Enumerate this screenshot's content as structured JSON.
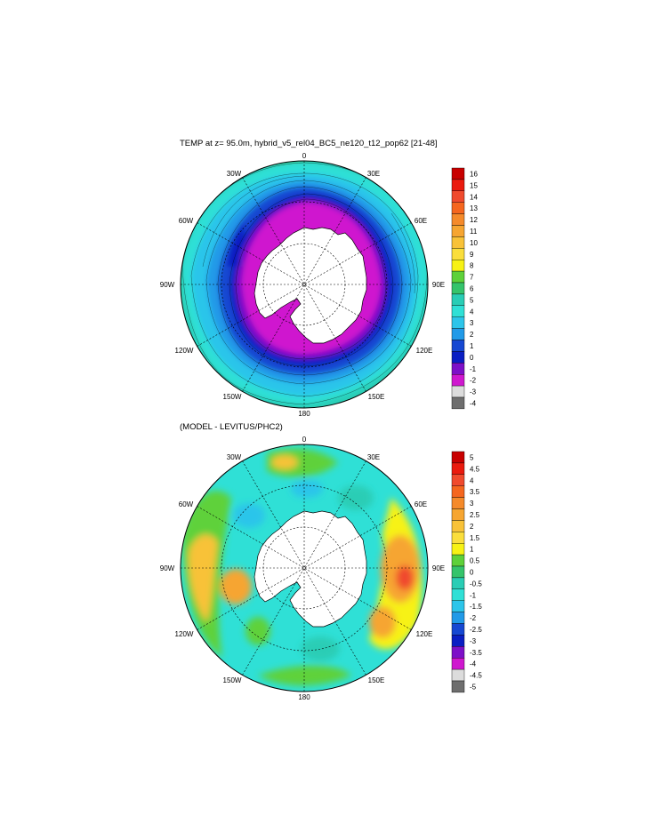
{
  "maps": [
    {
      "title": "TEMP at z=  95.0m, hybrid_v5_rel04_BC5_ne120_t12_pop62 [21-48]",
      "projection": "polar-stereographic-south",
      "longitude_labels": {
        "top": "0",
        "upper_right": "30E",
        "right_upper": "60E",
        "right": "90E",
        "right_lower": "120E",
        "lower_right": "150E",
        "bottom": "180",
        "lower_left": "150W",
        "left_lower": "120W",
        "left": "90W",
        "left_upper": "60W",
        "upper_left": "30W"
      },
      "colorbar": {
        "labels": [
          "16",
          "15",
          "14",
          "13",
          "12",
          "11",
          "10",
          "9",
          "8",
          "7",
          "6",
          "5",
          "4",
          "3",
          "2",
          "1",
          "0",
          "-1",
          "-2",
          "-3",
          "-4"
        ],
        "colors": [
          "#c80000",
          "#ea1a0e",
          "#f04a2d",
          "#f5661e",
          "#f58a2a",
          "#f6a531",
          "#f8c238",
          "#fade3c",
          "#f7f214",
          "#5ed13a",
          "#35c46b",
          "#29cdb5",
          "#2fe0d6",
          "#2cc5ea",
          "#219ae8",
          "#1648d2",
          "#0a1ec3",
          "#7d10c8",
          "#cf18cf",
          "#dcdcdc",
          "#6e6e6e"
        ]
      }
    },
    {
      "title": "(MODEL - LEVITUS/PHC2)",
      "projection": "polar-stereographic-south",
      "longitude_labels": {
        "top": "0",
        "upper_right": "30E",
        "right_upper": "60E",
        "right": "90E",
        "right_lower": "120E",
        "lower_right": "150E",
        "bottom": "180",
        "lower_left": "150W",
        "left_lower": "120W",
        "left": "90W",
        "left_upper": "60W",
        "upper_left": "30W"
      },
      "colorbar": {
        "labels": [
          "5",
          "4.5",
          "4",
          "3.5",
          "3",
          "2.5",
          "2",
          "1.5",
          "1",
          "0.5",
          "0",
          "-0.5",
          "-1",
          "-1.5",
          "-2",
          "-2.5",
          "-3",
          "-3.5",
          "-4",
          "-4.5",
          "-5"
        ],
        "colors": [
          "#c80000",
          "#ea1a0e",
          "#f04a2d",
          "#f5661e",
          "#f58a2a",
          "#f6a531",
          "#f8c238",
          "#fade3c",
          "#f7f214",
          "#5ed13a",
          "#35c46b",
          "#29cdb5",
          "#2fe0d6",
          "#2cc5ea",
          "#219ae8",
          "#1648d2",
          "#0a1ec3",
          "#7d10c8",
          "#cf18cf",
          "#dcdcdc",
          "#6e6e6e"
        ]
      }
    }
  ]
}
